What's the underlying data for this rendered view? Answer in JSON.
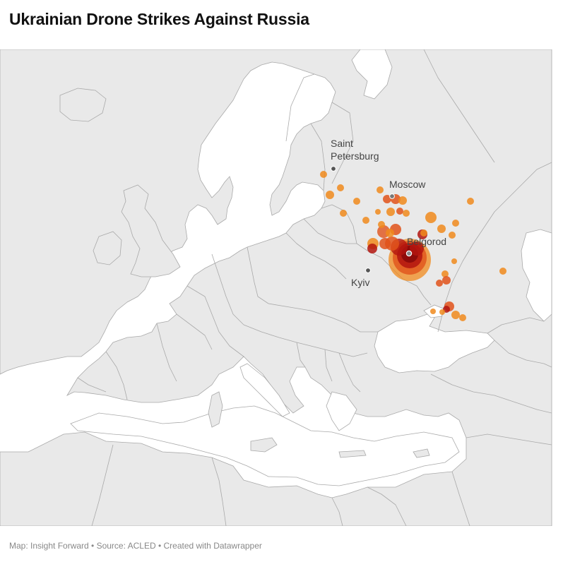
{
  "title": "Ukrainian Drone Strikes Against Russia",
  "footer": "Map: Insight Forward • Source: ACLED • Created with Datawrapper",
  "colors": {
    "land": "#e9e9e9",
    "sea": "#ffffff",
    "border": "#a9a9a9",
    "strike_small": "#f08a1c",
    "strike_medium": "#e0521a",
    "strike_large": "#b3150f",
    "strike_center": "#8a0a0a",
    "city_dot": "#555555"
  },
  "cities": [
    {
      "name": "Saint Petersburg",
      "label_lines": [
        "Saint",
        "Petersburg"
      ]
    },
    {
      "name": "Moscow",
      "label_lines": [
        "Moscow"
      ]
    },
    {
      "name": "Belgorod",
      "label_lines": [
        "Belgorod"
      ]
    },
    {
      "name": "Kyiv",
      "label_lines": [
        "Kyiv"
      ]
    }
  ]
}
